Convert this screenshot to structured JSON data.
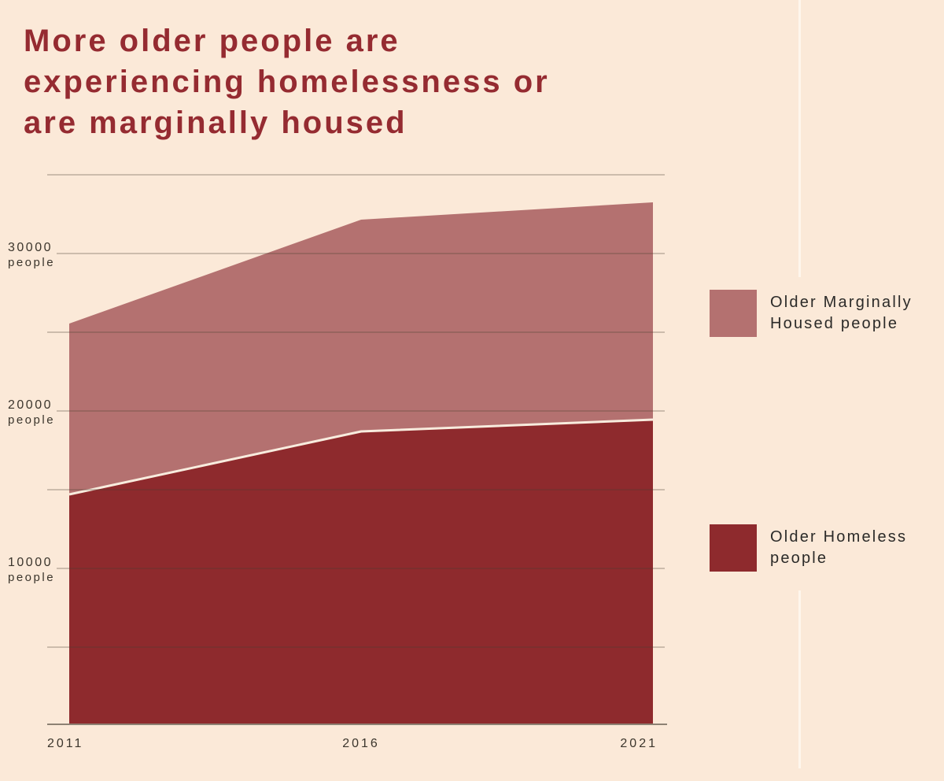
{
  "page": {
    "background_color": "#fbe9d8",
    "title": "More older people are experiencing homelessness or are marginally housed",
    "title_lines": [
      "More older people are",
      "experiencing homelessness or",
      "are marginally housed"
    ],
    "title_color": "#952b31"
  },
  "chart_data": {
    "type": "area",
    "stacked": true,
    "title": "More older people are experiencing homelessness or are marginally housed",
    "x": [
      2011,
      2016,
      2021
    ],
    "x_tick_labels": [
      "2011",
      "2016",
      "2021"
    ],
    "series": [
      {
        "name": "Older Homeless people",
        "color": "#8e2a2d",
        "values": [
          14700,
          18700,
          19450
        ]
      },
      {
        "name": "Older Marginally Housed people",
        "color": "#b47170",
        "values": [
          10850,
          13450,
          13800
        ]
      }
    ],
    "stacked_totals": [
      25550,
      32150,
      33250
    ],
    "y_ticks": [
      {
        "value": 10000,
        "label": "10000",
        "sublabel": "people"
      },
      {
        "value": 20000,
        "label": "20000",
        "sublabel": "people"
      },
      {
        "value": 30000,
        "label": "30000",
        "sublabel": "people"
      }
    ],
    "gridline_values": [
      5000,
      10000,
      15000,
      20000,
      25000,
      30000,
      35000
    ],
    "ylim": [
      0,
      35500
    ],
    "grid": true,
    "legend_position": "right",
    "colors": {
      "gridline": "rgba(75,62,50,0.35)",
      "axis_line": "#8d8173",
      "series_separator_line": "#f8ecde",
      "divider_line": "#fef6ec"
    }
  },
  "legend": {
    "items": [
      {
        "label": "Older Marginally Housed people",
        "lines": [
          "Older Marginally",
          "Housed people"
        ],
        "color": "#b47170"
      },
      {
        "label": "Older Homeless people",
        "lines": [
          "Older Homeless",
          "people"
        ],
        "color": "#8e2a2d"
      }
    ]
  }
}
